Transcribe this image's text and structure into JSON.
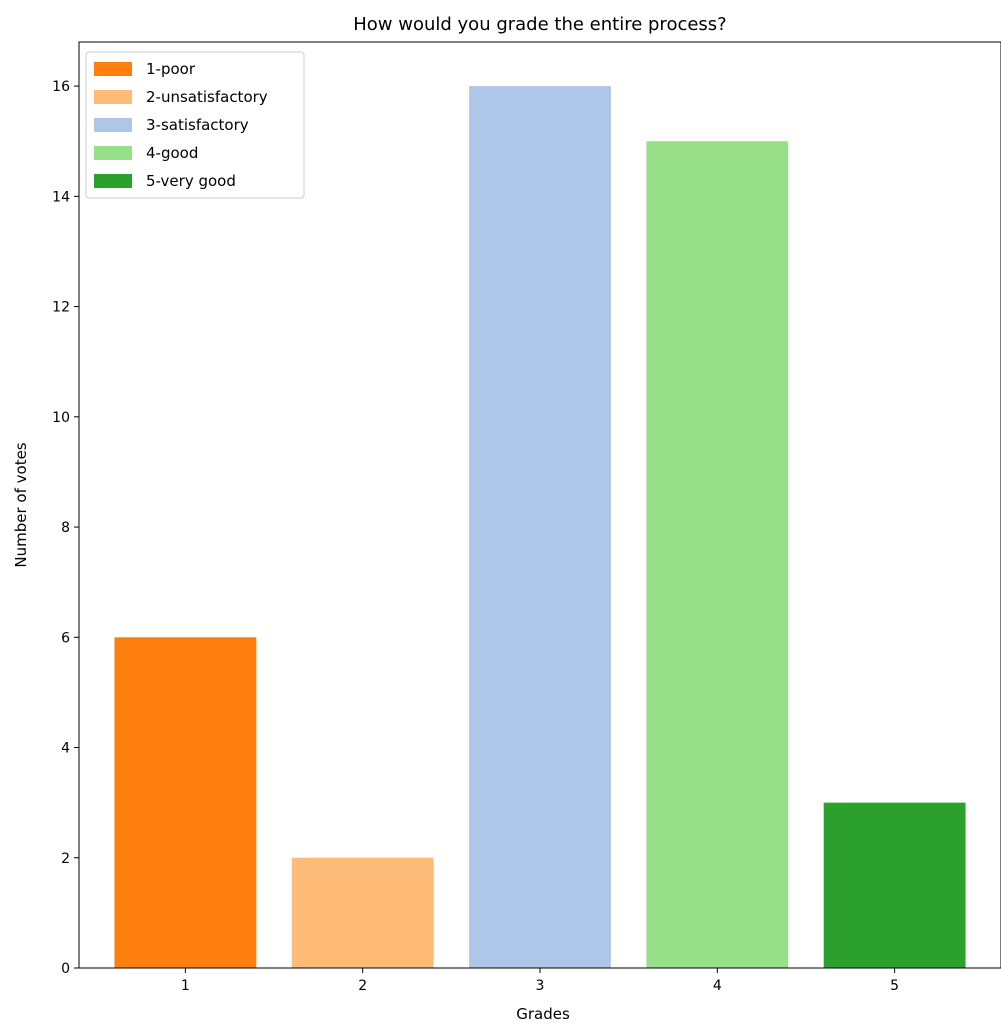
{
  "chart_data": {
    "type": "bar",
    "title": "How would you grade the entire process?",
    "xlabel": "Grades",
    "ylabel": "Number of votes",
    "categories": [
      "1",
      "2",
      "3",
      "4",
      "5"
    ],
    "values": [
      6,
      2,
      16,
      15,
      3
    ],
    "colors": [
      "#ff7f0e",
      "#ffbb78",
      "#aec7e8",
      "#98df8a",
      "#2ca02c"
    ],
    "ylim": [
      0,
      16.8
    ],
    "yticks": [
      0,
      2,
      4,
      6,
      8,
      10,
      12,
      14,
      16
    ],
    "legend_position": "top-left",
    "legend": [
      {
        "label": "1-poor",
        "color": "#ff7f0e"
      },
      {
        "label": "2-unsatisfactory",
        "color": "#ffbb78"
      },
      {
        "label": "3-satisfactory",
        "color": "#aec7e8"
      },
      {
        "label": "4-good",
        "color": "#98df8a"
      },
      {
        "label": "5-very good",
        "color": "#2ca02c"
      }
    ],
    "grid": false
  }
}
